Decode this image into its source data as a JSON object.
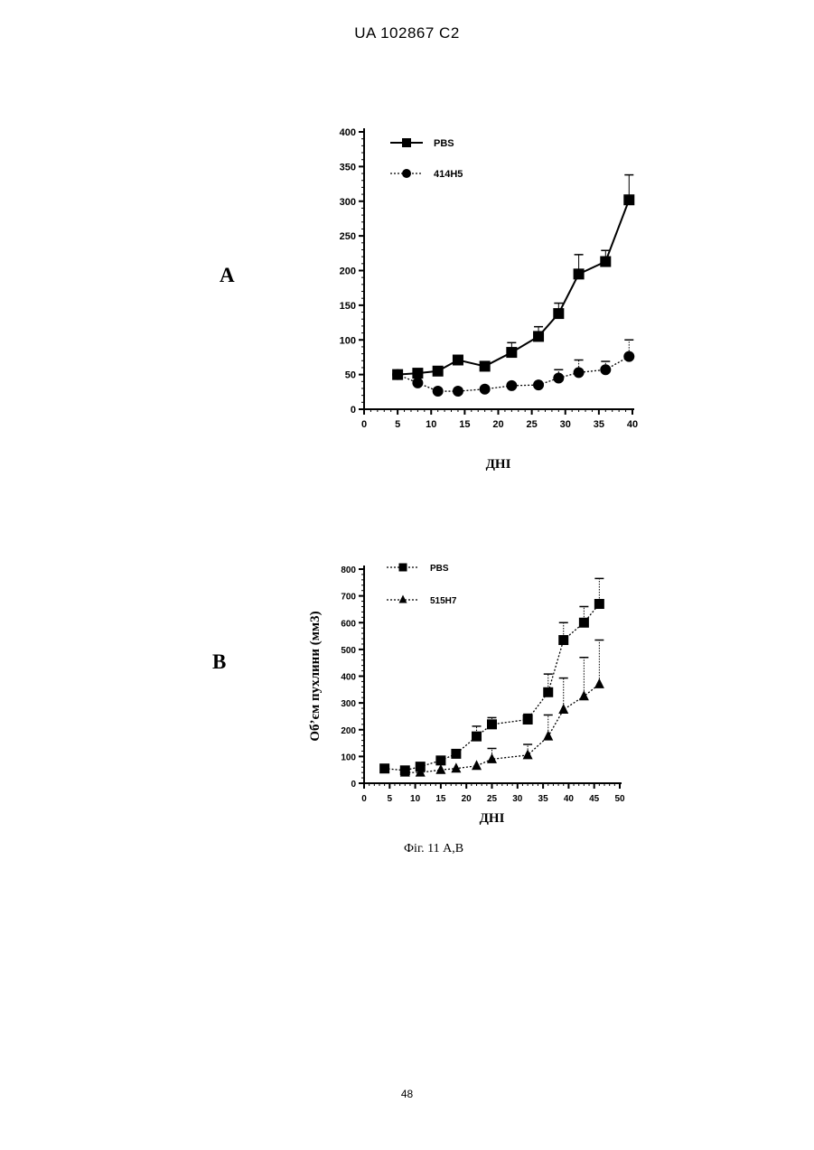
{
  "header": {
    "text": "UA   102867   C2"
  },
  "chart_data": [
    {
      "panel": "A",
      "type": "line",
      "xlabel": "ДНІ",
      "ylabel": "",
      "xlim": [
        0,
        40
      ],
      "ylim": [
        0,
        400
      ],
      "xticks": [
        0,
        5,
        10,
        15,
        20,
        25,
        30,
        35,
        40
      ],
      "yticks": [
        0,
        50,
        100,
        150,
        200,
        250,
        300,
        350,
        400
      ],
      "legend_placement": "top-left",
      "series": [
        {
          "name": "PBS",
          "marker": "square",
          "line": "solid",
          "x": [
            5,
            8,
            11,
            14,
            18,
            22,
            26,
            29,
            32,
            36,
            39.5
          ],
          "y": [
            50,
            52,
            55,
            71,
            62,
            82,
            105,
            138,
            195,
            213,
            302
          ],
          "err": [
            0,
            0,
            0,
            0,
            0,
            14,
            14,
            15,
            28,
            16,
            36
          ]
        },
        {
          "name": "414H5",
          "marker": "circle",
          "line": "dotted",
          "x": [
            5,
            8,
            11,
            14,
            18,
            22,
            26,
            29,
            32,
            36,
            39.5
          ],
          "y": [
            50,
            38,
            26,
            26,
            29,
            34,
            35,
            45,
            53,
            57,
            76
          ],
          "err": [
            0,
            0,
            0,
            0,
            0,
            0,
            0,
            12,
            18,
            12,
            24
          ]
        }
      ]
    },
    {
      "panel": "B",
      "type": "line",
      "xlabel": "ДНІ",
      "ylabel": "Об’єм пухлини (мм3)",
      "xlim": [
        0,
        50
      ],
      "ylim": [
        0,
        800
      ],
      "xticks": [
        0,
        5,
        10,
        15,
        20,
        25,
        30,
        35,
        40,
        45,
        50
      ],
      "yticks": [
        0,
        100,
        200,
        300,
        400,
        500,
        600,
        700,
        800
      ],
      "legend_placement": "top-left",
      "series": [
        {
          "name": "PBS",
          "marker": "square",
          "line": "dotted",
          "x": [
            4,
            8,
            11,
            15,
            18,
            22,
            25,
            32,
            36,
            39,
            43,
            46
          ],
          "y": [
            55,
            48,
            62,
            85,
            110,
            175,
            220,
            238,
            340,
            535,
            600,
            670
          ],
          "err": [
            0,
            0,
            0,
            0,
            10,
            38,
            25,
            20,
            68,
            65,
            60,
            95
          ]
        },
        {
          "name": "515H7",
          "marker": "triangle",
          "line": "dotted",
          "x": [
            8,
            11,
            15,
            18,
            22,
            25,
            32,
            36,
            39,
            43,
            46
          ],
          "y": [
            40,
            40,
            50,
            55,
            65,
            90,
            105,
            175,
            275,
            325,
            370
          ],
          "err": [
            0,
            0,
            0,
            0,
            0,
            40,
            40,
            80,
            118,
            145,
            165
          ]
        }
      ]
    }
  ],
  "panels": {
    "a_label": "A",
    "b_label": "B"
  },
  "caption": "Фіг. 11 А,В",
  "page_number": "48"
}
